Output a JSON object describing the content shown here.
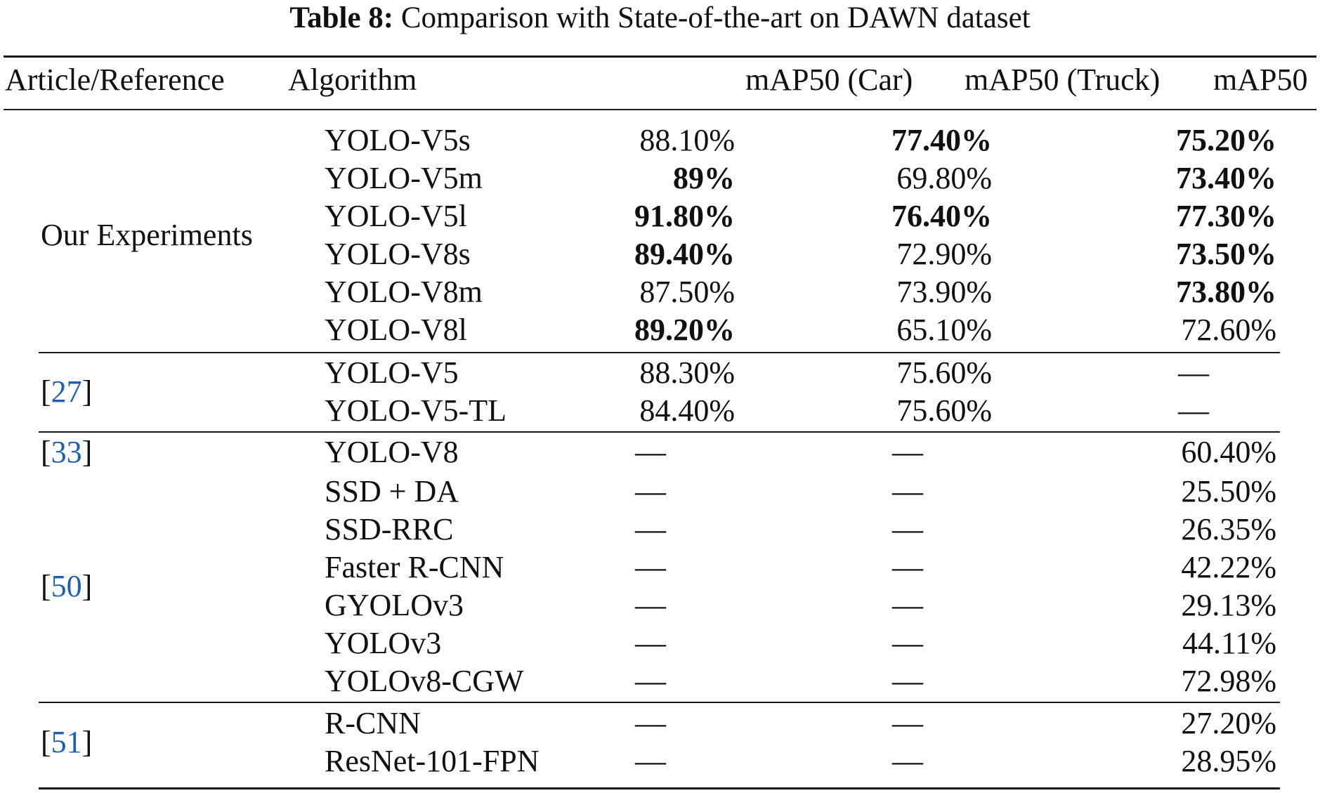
{
  "caption": {
    "label": "Table 8:",
    "text": "Comparison with State-of-the-art on DAWN dataset"
  },
  "headers": {
    "reference": "Article/Reference",
    "algorithm": "Algorithm",
    "car": "mAP50 (Car)",
    "truck": "mAP50 (Truck)",
    "overall": "mAP50"
  },
  "groups": [
    {
      "label": "Our Experiments",
      "ref": "",
      "rows": [
        {
          "algorithm": "YOLO-V5s",
          "car": "88.10%",
          "car_bold": false,
          "truck": "77.40%",
          "truck_bold": true,
          "overall": "75.20%",
          "overall_bold": true
        },
        {
          "algorithm": "YOLO-V5m",
          "car": "89%",
          "car_bold": true,
          "truck": "69.80%",
          "truck_bold": false,
          "overall": "73.40%",
          "overall_bold": true
        },
        {
          "algorithm": "YOLO-V5l",
          "car": "91.80%",
          "car_bold": true,
          "truck": "76.40%",
          "truck_bold": true,
          "overall": "77.30%",
          "overall_bold": true
        },
        {
          "algorithm": "YOLO-V8s",
          "car": "89.40%",
          "car_bold": true,
          "truck": "72.90%",
          "truck_bold": false,
          "overall": "73.50%",
          "overall_bold": true
        },
        {
          "algorithm": "YOLO-V8m",
          "car": "87.50%",
          "car_bold": false,
          "truck": "73.90%",
          "truck_bold": false,
          "overall": "73.80%",
          "overall_bold": true
        },
        {
          "algorithm": "YOLO-V8l",
          "car": "89.20%",
          "car_bold": true,
          "truck": "65.10%",
          "truck_bold": false,
          "overall": "72.60%",
          "overall_bold": false
        }
      ]
    },
    {
      "label": "",
      "ref": "27",
      "rows": [
        {
          "algorithm": "YOLO-V5",
          "car": "88.30%",
          "car_bold": false,
          "truck": "75.60%",
          "truck_bold": false,
          "overall": "—",
          "overall_bold": false
        },
        {
          "algorithm": "YOLO-V5-TL",
          "car": "84.40%",
          "car_bold": false,
          "truck": "75.60%",
          "truck_bold": false,
          "overall": "—",
          "overall_bold": false
        }
      ]
    },
    {
      "label": "",
      "ref": "33",
      "rows": [
        {
          "algorithm": "YOLO-V8",
          "car": "—",
          "car_bold": false,
          "truck": "—",
          "truck_bold": false,
          "overall": "60.40%",
          "overall_bold": false
        }
      ]
    },
    {
      "label": "",
      "ref": "50",
      "rows": [
        {
          "algorithm": "SSD + DA",
          "car": "—",
          "car_bold": false,
          "truck": "—",
          "truck_bold": false,
          "overall": "25.50%",
          "overall_bold": false
        },
        {
          "algorithm": "SSD-RRC",
          "car": "—",
          "car_bold": false,
          "truck": "—",
          "truck_bold": false,
          "overall": "26.35%",
          "overall_bold": false
        },
        {
          "algorithm": "Faster R-CNN",
          "car": "—",
          "car_bold": false,
          "truck": "—",
          "truck_bold": false,
          "overall": "42.22%",
          "overall_bold": false
        },
        {
          "algorithm": "GYOLOv3",
          "car": "—",
          "car_bold": false,
          "truck": "—",
          "truck_bold": false,
          "overall": "29.13%",
          "overall_bold": false
        },
        {
          "algorithm": "YOLOv3",
          "car": "—",
          "car_bold": false,
          "truck": "—",
          "truck_bold": false,
          "overall": "44.11%",
          "overall_bold": false
        },
        {
          "algorithm": "YOLOv8-CGW",
          "car": "—",
          "car_bold": false,
          "truck": "—",
          "truck_bold": false,
          "overall": "72.98%",
          "overall_bold": false
        }
      ]
    },
    {
      "label": "",
      "ref": "51",
      "rows": [
        {
          "algorithm": "R-CNN",
          "car": "—",
          "car_bold": false,
          "truck": "—",
          "truck_bold": false,
          "overall": "27.20%",
          "overall_bold": false
        },
        {
          "algorithm": "ResNet-101-FPN",
          "car": "—",
          "car_bold": false,
          "truck": "—",
          "truck_bold": false,
          "overall": "28.95%",
          "overall_bold": false
        }
      ]
    }
  ]
}
